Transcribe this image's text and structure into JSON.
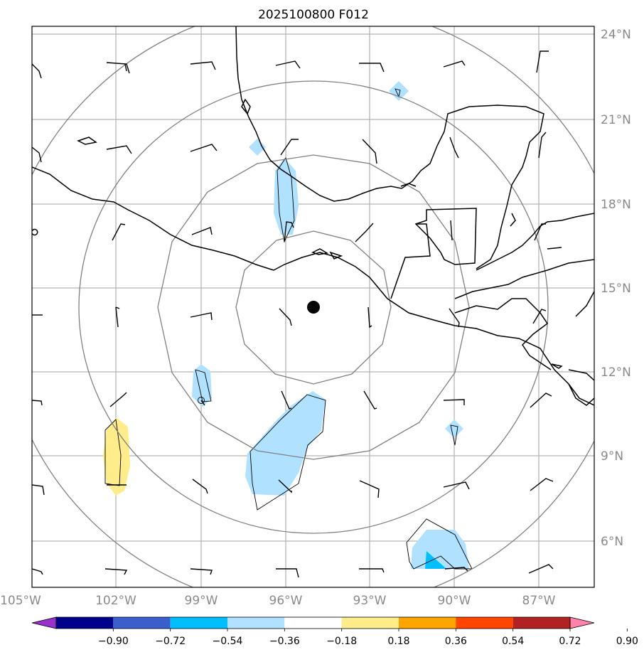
{
  "title": "2025100800 F012",
  "longitude_labels": [
    "105°W",
    "102°W",
    "99°W",
    "96°W",
    "93°W",
    "90°W",
    "87°W"
  ],
  "latitude_labels": [
    "24°N",
    "21°N",
    "18°N",
    "15°N",
    "12°N",
    "9°N",
    "6°N"
  ],
  "colorbar": {
    "tick_labels": [
      "−0.90",
      "−0.72",
      "−0.54",
      "−0.36",
      "−0.18",
      "0.18",
      "0.36",
      "0.54",
      "0.72",
      "0.90"
    ],
    "colors": [
      "#9932cc",
      "#00008b",
      "#3a5fcd",
      "#00bfff",
      "#b0e2ff",
      "#ffffff",
      "#ffec8b",
      "#ffa500",
      "#ff4500",
      "#b22222",
      "#ff82ab"
    ]
  },
  "storm_center": {
    "lon": -95.0,
    "lat": 14.3
  },
  "range_rings_count": 4
}
